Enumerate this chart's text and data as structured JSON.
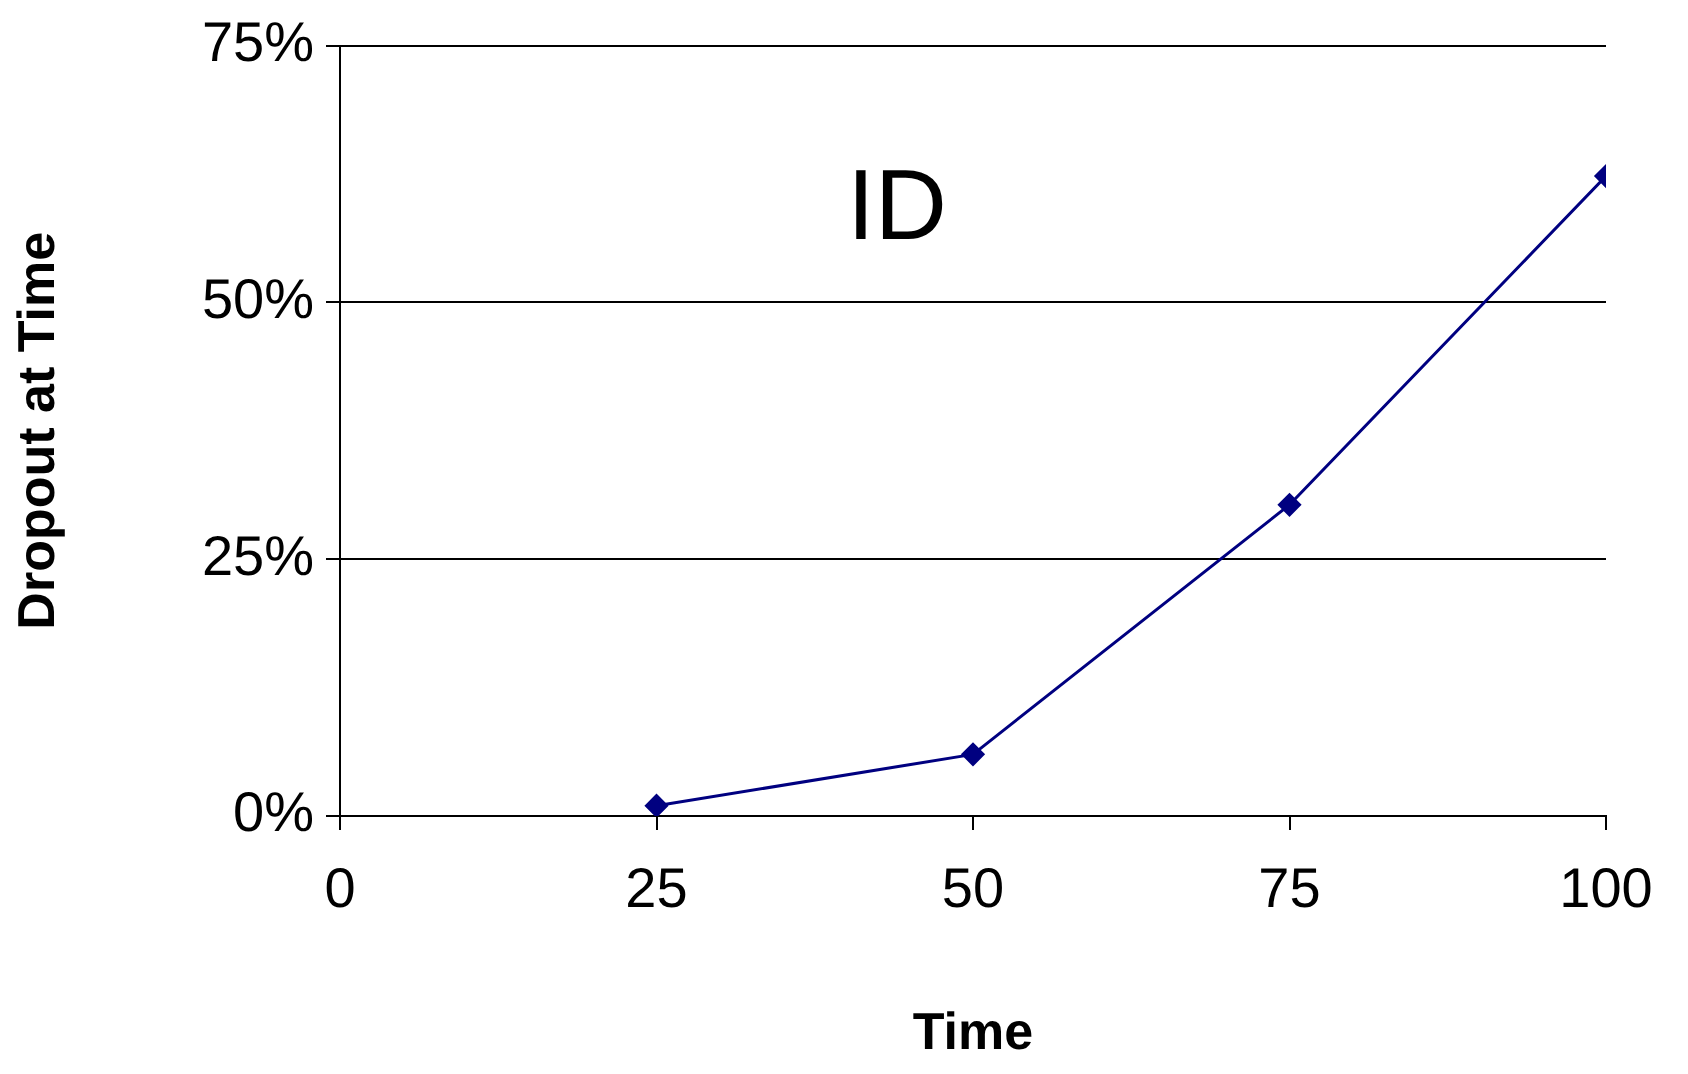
{
  "chart_data": {
    "type": "line",
    "title": "ID",
    "xlabel": "Time",
    "ylabel": "Dropout at Time",
    "x": [
      25,
      50,
      75,
      100
    ],
    "series": [
      {
        "color": "#000080",
        "values": [
          1,
          6,
          30.3,
          62.3
        ]
      }
    ],
    "xlim": [
      0,
      100
    ],
    "xticks": [
      0,
      25,
      50,
      75,
      100
    ],
    "ylim": [
      0,
      75
    ],
    "yticks": [
      {
        "value": 0,
        "label": "0%"
      },
      {
        "value": 25,
        "label": "25%"
      },
      {
        "value": 50,
        "label": "50%"
      },
      {
        "value": 75,
        "label": "75%"
      }
    ],
    "grid": "y",
    "legend": false,
    "marker": "diamond",
    "line_style": "solid"
  }
}
